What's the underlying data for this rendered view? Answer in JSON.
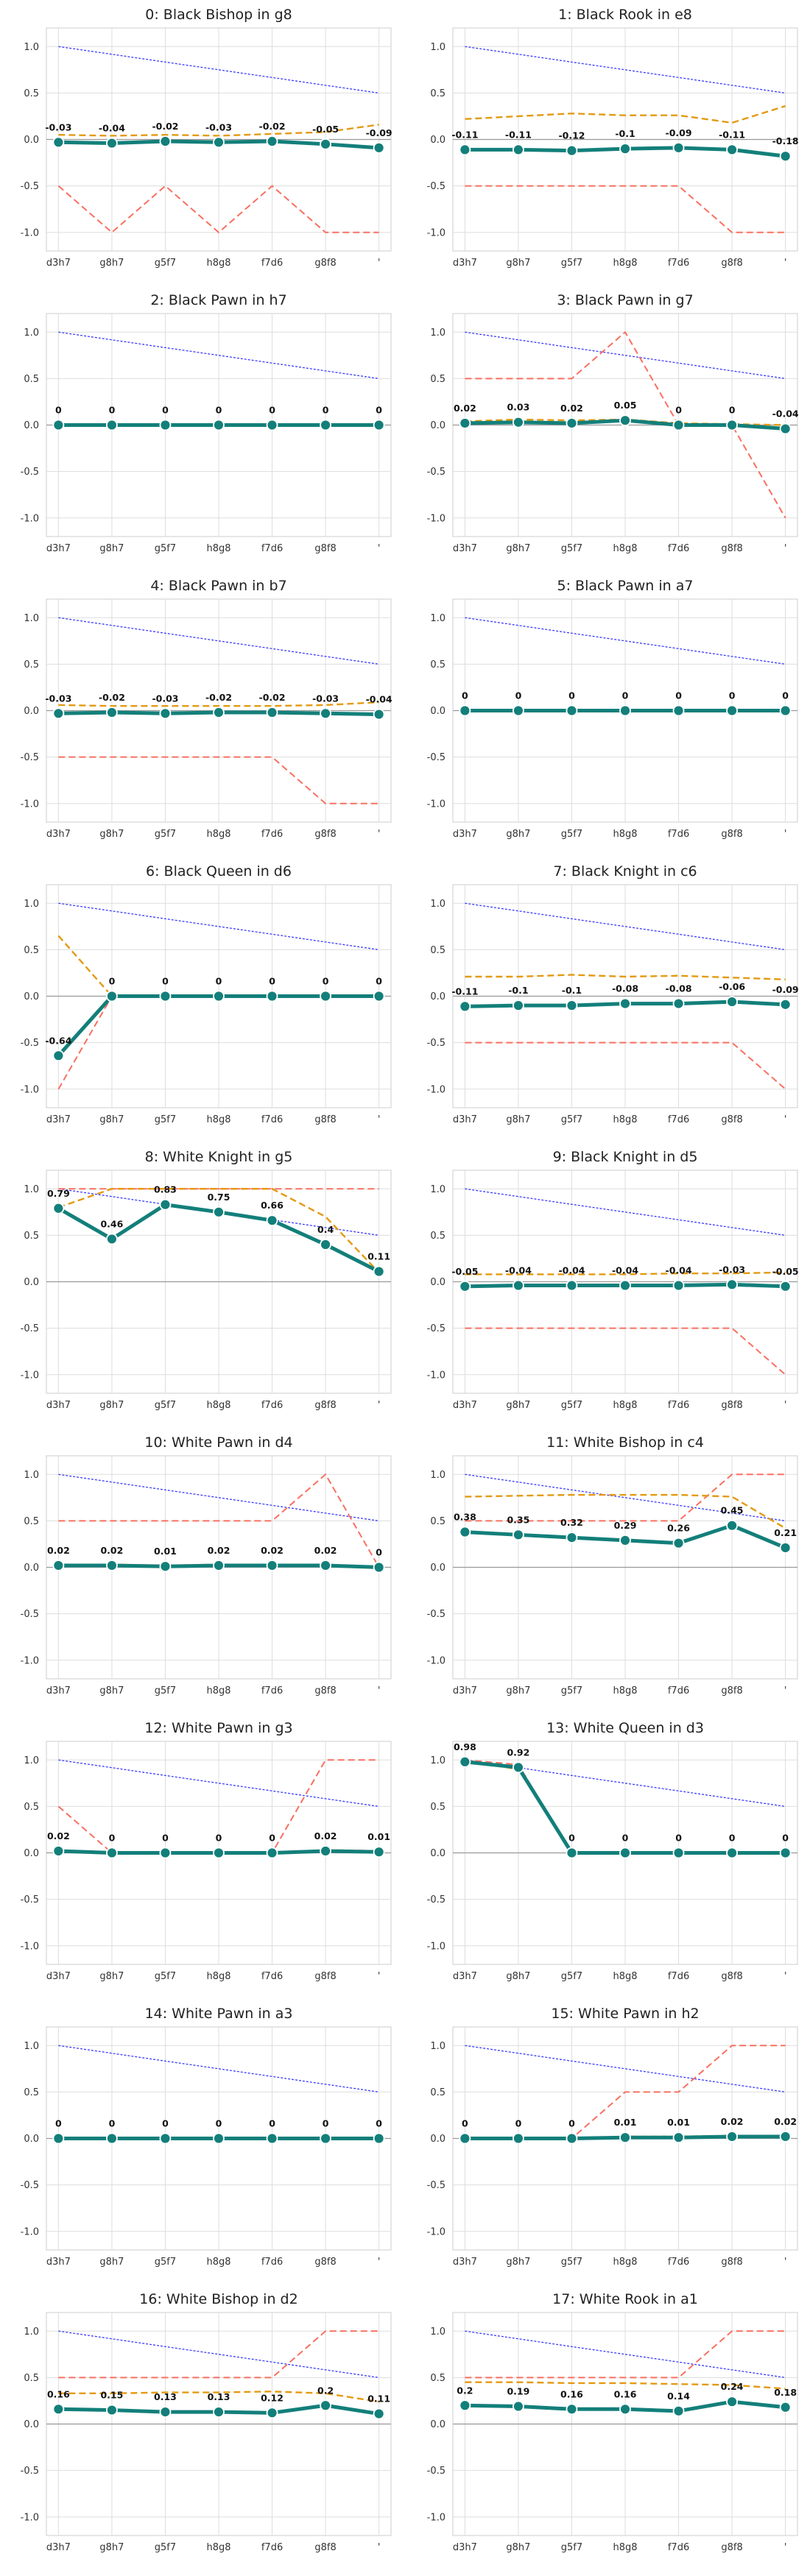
{
  "chart_data": {
    "type": "line",
    "x": [
      "d3h7",
      "g8h7",
      "g5f7",
      "h8g8",
      "f7d6",
      "g8f8",
      "'"
    ],
    "ylim": [
      -1.2,
      1.2
    ],
    "yticks": [
      -1.0,
      -0.5,
      0.0,
      0.5,
      1.0
    ],
    "grid": true,
    "series_styles": {
      "main": {
        "color": "#137f7a"
      },
      "orange": {
        "color": "#e39a13"
      },
      "red": {
        "color": "#f87060"
      },
      "blue": {
        "color": "#3b3bff"
      }
    },
    "panels": [
      {
        "title": "0: Black Bishop in g8",
        "main": [
          -0.03,
          -0.04,
          -0.02,
          -0.03,
          -0.02,
          -0.05,
          -0.09
        ],
        "orange": [
          0.05,
          0.04,
          0.05,
          0.04,
          0.06,
          0.08,
          0.16
        ],
        "red": [
          -0.5,
          -1.0,
          -0.5,
          -1.0,
          -0.5,
          -1.0,
          -1.0
        ],
        "blue": [
          1.0,
          0.917,
          0.833,
          0.75,
          0.667,
          0.583,
          0.5
        ]
      },
      {
        "title": "1: Black Rook in e8",
        "main": [
          -0.11,
          -0.11,
          -0.12,
          -0.1,
          -0.09,
          -0.11,
          -0.18
        ],
        "orange": [
          0.22,
          0.25,
          0.28,
          0.26,
          0.26,
          0.18,
          0.36
        ],
        "red": [
          -0.5,
          -0.5,
          -0.5,
          -0.5,
          -0.5,
          -1.0,
          -1.0
        ],
        "blue": [
          1.0,
          0.917,
          0.833,
          0.75,
          0.667,
          0.583,
          0.5
        ]
      },
      {
        "title": "2: Black Pawn in h7",
        "main": [
          0.0,
          0.0,
          0.0,
          0.0,
          0.0,
          0.0,
          0.0
        ],
        "orange": [
          0.0,
          0.0,
          0.0,
          0.0,
          0.0,
          0.0,
          0.0
        ],
        "red": [
          0.0,
          0.0,
          0.0,
          0.0,
          0.0,
          0.0,
          0.0
        ],
        "blue": [
          1.0,
          0.917,
          0.833,
          0.75,
          0.667,
          0.583,
          0.5
        ]
      },
      {
        "title": "3: Black Pawn in g7",
        "main": [
          0.02,
          0.03,
          0.02,
          0.05,
          0.0,
          0.0,
          -0.04
        ],
        "orange": [
          0.04,
          0.06,
          0.05,
          0.06,
          0.02,
          0.01,
          0.0
        ],
        "red": [
          0.5,
          0.5,
          0.5,
          1.0,
          0.0,
          0.0,
          -1.0
        ],
        "blue": [
          1.0,
          0.917,
          0.833,
          0.75,
          0.667,
          0.583,
          0.5
        ]
      },
      {
        "title": "4: Black Pawn in b7",
        "main": [
          -0.03,
          -0.02,
          -0.03,
          -0.02,
          -0.02,
          -0.03,
          -0.04
        ],
        "orange": [
          0.06,
          0.05,
          0.05,
          0.05,
          0.05,
          0.06,
          0.09
        ],
        "red": [
          -0.5,
          -0.5,
          -0.5,
          -0.5,
          -0.5,
          -1.0,
          -1.0
        ],
        "blue": [
          1.0,
          0.917,
          0.833,
          0.75,
          0.667,
          0.583,
          0.5
        ]
      },
      {
        "title": "5: Black Pawn in a7",
        "main": [
          0.0,
          0.0,
          0.0,
          0.0,
          0.0,
          0.0,
          0.0
        ],
        "orange": [
          0.0,
          0.0,
          0.0,
          0.0,
          0.0,
          0.0,
          0.0
        ],
        "red": [
          0.0,
          0.0,
          0.0,
          0.0,
          0.0,
          0.0,
          0.0
        ],
        "blue": [
          1.0,
          0.917,
          0.833,
          0.75,
          0.667,
          0.583,
          0.5
        ]
      },
      {
        "title": "6: Black Queen in d6",
        "main": [
          -0.64,
          0.0,
          0.0,
          0.0,
          0.0,
          0.0,
          0.0
        ],
        "orange": [
          0.65,
          0.0,
          0.0,
          0.0,
          0.0,
          0.0,
          0.0
        ],
        "red": [
          -1.0,
          0.0,
          0.0,
          0.0,
          0.0,
          0.0,
          0.0
        ],
        "blue": [
          1.0,
          0.917,
          0.833,
          0.75,
          0.667,
          0.583,
          0.5
        ]
      },
      {
        "title": "7: Black Knight in c6",
        "main": [
          -0.11,
          -0.1,
          -0.1,
          -0.08,
          -0.08,
          -0.06,
          -0.09
        ],
        "orange": [
          0.21,
          0.21,
          0.23,
          0.21,
          0.22,
          0.2,
          0.18
        ],
        "red": [
          -0.5,
          -0.5,
          -0.5,
          -0.5,
          -0.5,
          -0.5,
          -1.0
        ],
        "blue": [
          1.0,
          0.917,
          0.833,
          0.75,
          0.667,
          0.583,
          0.5
        ]
      },
      {
        "title": "8: White Knight in g5",
        "main": [
          0.79,
          0.46,
          0.83,
          0.75,
          0.66,
          0.4,
          0.11
        ],
        "orange": [
          0.8,
          1.0,
          1.0,
          1.0,
          1.0,
          0.7,
          0.1
        ],
        "red": [
          1.0,
          1.0,
          1.0,
          1.0,
          1.0,
          1.0,
          1.0
        ],
        "blue": [
          1.0,
          0.917,
          0.833,
          0.75,
          0.667,
          0.583,
          0.5
        ]
      },
      {
        "title": "9: Black Knight in d5",
        "main": [
          -0.05,
          -0.04,
          -0.04,
          -0.04,
          -0.04,
          -0.03,
          -0.05
        ],
        "orange": [
          0.08,
          0.08,
          0.08,
          0.08,
          0.09,
          0.09,
          0.1
        ],
        "red": [
          -0.5,
          -0.5,
          -0.5,
          -0.5,
          -0.5,
          -0.5,
          -1.0
        ],
        "blue": [
          1.0,
          0.917,
          0.833,
          0.75,
          0.667,
          0.583,
          0.5
        ]
      },
      {
        "title": "10: White Pawn in d4",
        "main": [
          0.02,
          0.02,
          0.01,
          0.02,
          0.02,
          0.02,
          0.0
        ],
        "orange": [
          0.03,
          0.03,
          0.02,
          0.03,
          0.03,
          0.03,
          0.0
        ],
        "red": [
          0.5,
          0.5,
          0.5,
          0.5,
          0.5,
          1.0,
          0.0
        ],
        "blue": [
          1.0,
          0.917,
          0.833,
          0.75,
          0.667,
          0.583,
          0.5
        ]
      },
      {
        "title": "11: White Bishop in c4",
        "main": [
          0.38,
          0.35,
          0.32,
          0.29,
          0.26,
          0.45,
          0.21
        ],
        "orange": [
          0.76,
          0.77,
          0.78,
          0.78,
          0.78,
          0.76,
          0.42
        ],
        "red": [
          0.5,
          0.5,
          0.5,
          0.5,
          0.5,
          1.0,
          1.0
        ],
        "blue": [
          1.0,
          0.917,
          0.833,
          0.75,
          0.667,
          0.583,
          0.5
        ]
      },
      {
        "title": "12: White Pawn in g3",
        "main": [
          0.02,
          0.0,
          0.0,
          0.0,
          0.0,
          0.02,
          0.01
        ],
        "orange": [
          0.03,
          0.0,
          0.0,
          0.0,
          0.0,
          0.03,
          0.02
        ],
        "red": [
          0.5,
          0.0,
          0.0,
          0.0,
          0.0,
          1.0,
          1.0
        ],
        "blue": [
          1.0,
          0.917,
          0.833,
          0.75,
          0.667,
          0.583,
          0.5
        ]
      },
      {
        "title": "13: White Queen in d3",
        "main": [
          0.98,
          0.92,
          0.0,
          0.0,
          0.0,
          0.0,
          0.0
        ],
        "orange": [
          0.99,
          0.9,
          0.0,
          0.0,
          0.0,
          0.0,
          0.0
        ],
        "red": [
          1.0,
          0.95,
          0.0,
          0.0,
          0.0,
          0.0,
          0.0
        ],
        "blue": [
          1.0,
          0.917,
          0.833,
          0.75,
          0.667,
          0.583,
          0.5
        ]
      },
      {
        "title": "14: White Pawn in a3",
        "main": [
          0.0,
          0.0,
          0.0,
          0.0,
          0.0,
          0.0,
          0.0
        ],
        "orange": [
          0.0,
          0.0,
          0.0,
          0.0,
          0.0,
          0.0,
          0.0
        ],
        "red": [
          0.0,
          0.0,
          0.0,
          0.0,
          0.0,
          0.0,
          0.0
        ],
        "blue": [
          1.0,
          0.917,
          0.833,
          0.75,
          0.667,
          0.583,
          0.5
        ]
      },
      {
        "title": "15: White Pawn in h2",
        "main": [
          0.0,
          0.0,
          0.0,
          0.01,
          0.01,
          0.02,
          0.02
        ],
        "orange": [
          0.0,
          0.0,
          0.0,
          0.02,
          0.02,
          0.03,
          0.03
        ],
        "red": [
          0.0,
          0.0,
          0.0,
          0.5,
          0.5,
          1.0,
          1.0
        ],
        "blue": [
          1.0,
          0.917,
          0.833,
          0.75,
          0.667,
          0.583,
          0.5
        ]
      },
      {
        "title": "16: White Bishop in d2",
        "main": [
          0.16,
          0.15,
          0.13,
          0.13,
          0.12,
          0.2,
          0.11
        ],
        "orange": [
          0.33,
          0.33,
          0.34,
          0.34,
          0.35,
          0.33,
          0.24
        ],
        "red": [
          0.5,
          0.5,
          0.5,
          0.5,
          0.5,
          1.0,
          1.0
        ],
        "blue": [
          1.0,
          0.917,
          0.833,
          0.75,
          0.667,
          0.583,
          0.5
        ]
      },
      {
        "title": "17: White Rook in a1",
        "main": [
          0.2,
          0.19,
          0.16,
          0.16,
          0.14,
          0.24,
          0.18
        ],
        "orange": [
          0.45,
          0.45,
          0.44,
          0.44,
          0.43,
          0.42,
          0.38
        ],
        "red": [
          0.5,
          0.5,
          0.5,
          0.5,
          0.5,
          1.0,
          1.0
        ],
        "blue": [
          1.0,
          0.917,
          0.833,
          0.75,
          0.667,
          0.583,
          0.5
        ]
      }
    ]
  }
}
